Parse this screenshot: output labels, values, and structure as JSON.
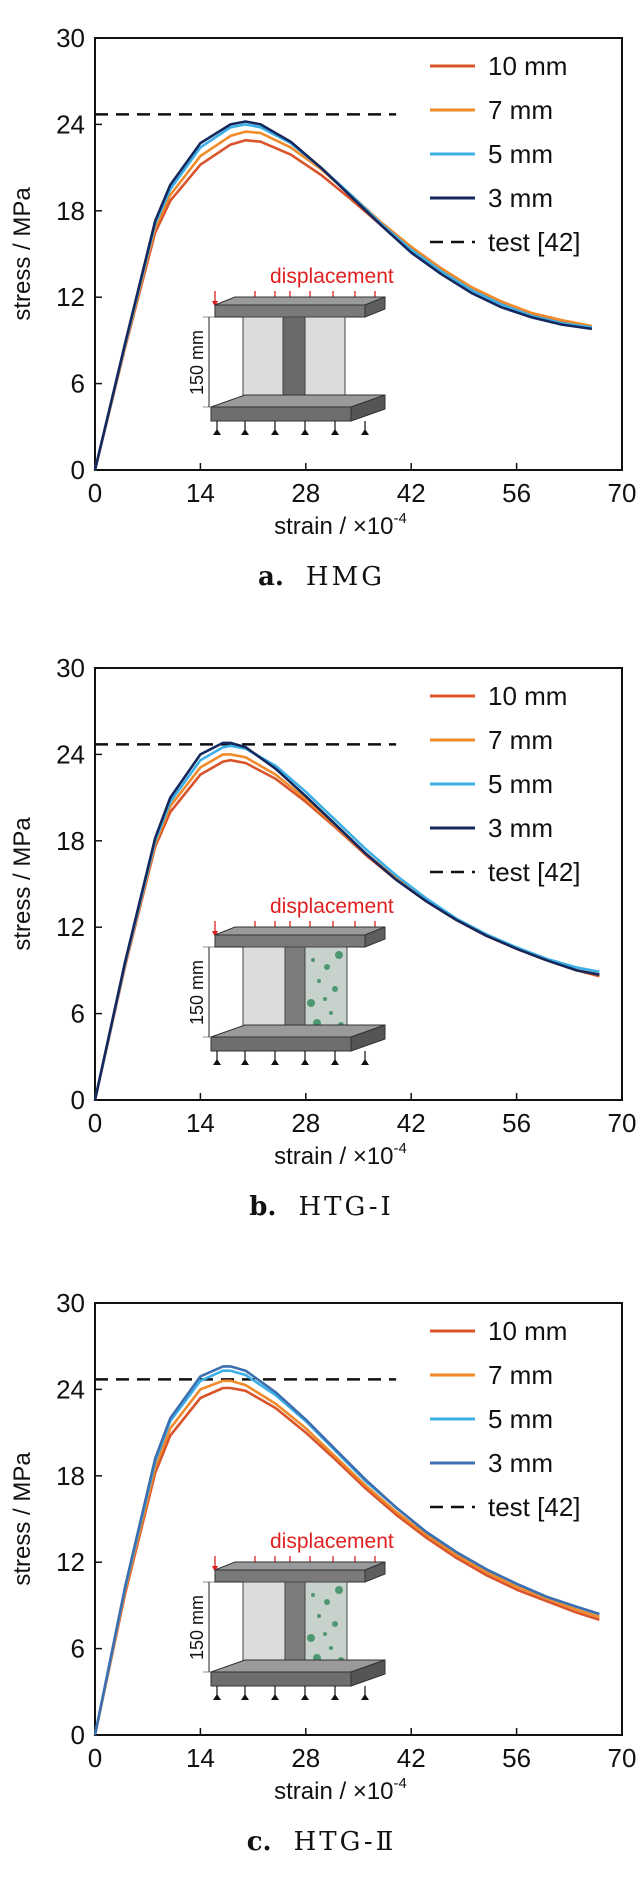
{
  "chart_data": [
    {
      "type": "line",
      "caption_label": "a.",
      "caption_name": "HMG",
      "xlabel": "strain / ×10",
      "xlabel_exp": "-4",
      "ylabel": "stress / MPa",
      "xlim": [
        0,
        70
      ],
      "ylim": [
        0,
        30
      ],
      "xticks": [
        "0",
        "14",
        "28",
        "42",
        "56",
        "70"
      ],
      "yticks": [
        "0",
        "6",
        "12",
        "18",
        "24",
        "30"
      ],
      "legend_placement": "top-right",
      "test_value": 24.7,
      "test_x_range": [
        0,
        40
      ],
      "series": [
        {
          "name": "10 mm",
          "color": "#d9542b",
          "x": [
            0,
            4,
            8,
            10,
            14,
            18,
            20,
            22,
            26,
            30,
            34,
            38,
            42,
            46,
            50,
            54,
            58,
            62,
            66
          ],
          "y": [
            0,
            8.5,
            16.5,
            18.7,
            21.2,
            22.6,
            22.9,
            22.8,
            21.9,
            20.5,
            18.8,
            17.0,
            15.3,
            13.9,
            12.6,
            11.6,
            10.8,
            10.3,
            9.9
          ]
        },
        {
          "name": "7 mm",
          "color": "#f08a2a",
          "x": [
            0,
            4,
            8,
            10,
            14,
            18,
            20,
            22,
            26,
            30,
            34,
            38,
            42,
            46,
            50,
            54,
            58,
            62,
            66
          ],
          "y": [
            0,
            8.6,
            16.8,
            19.1,
            21.8,
            23.2,
            23.5,
            23.4,
            22.4,
            20.9,
            19.1,
            17.2,
            15.5,
            14.0,
            12.7,
            11.7,
            10.9,
            10.4,
            10.0
          ]
        },
        {
          "name": "5 mm",
          "color": "#3cb0e6",
          "x": [
            0,
            4,
            8,
            10,
            14,
            18,
            20,
            22,
            26,
            30,
            34,
            38,
            42,
            46,
            50,
            54,
            58,
            62,
            66
          ],
          "y": [
            0,
            8.7,
            17.1,
            19.5,
            22.4,
            23.8,
            24.0,
            23.8,
            22.7,
            21.0,
            19.1,
            17.1,
            15.3,
            13.8,
            12.5,
            11.5,
            10.7,
            10.2,
            9.9
          ]
        },
        {
          "name": "3 mm",
          "color": "#14285e",
          "x": [
            0,
            4,
            8,
            10,
            14,
            18,
            20,
            22,
            26,
            30,
            34,
            38,
            42,
            46,
            50,
            54,
            58,
            62,
            66
          ],
          "y": [
            0,
            8.8,
            17.3,
            19.8,
            22.7,
            24.0,
            24.2,
            24.0,
            22.8,
            21.0,
            19.0,
            17.0,
            15.1,
            13.6,
            12.3,
            11.3,
            10.6,
            10.1,
            9.8
          ]
        }
      ],
      "test_label": "test [42]",
      "inset_label": "displacement",
      "inset_dim": "150 mm",
      "inset_type": "homogeneous"
    },
    {
      "type": "line",
      "caption_label": "b.",
      "caption_name": "HTG-Ⅰ",
      "xlabel": "strain / ×10",
      "xlabel_exp": "-4",
      "ylabel": "stress / MPa",
      "xlim": [
        0,
        70
      ],
      "ylim": [
        0,
        30
      ],
      "xticks": [
        "0",
        "14",
        "28",
        "42",
        "56",
        "70"
      ],
      "yticks": [
        "0",
        "6",
        "12",
        "18",
        "24",
        "30"
      ],
      "legend_placement": "top-right",
      "test_value": 24.7,
      "test_x_range": [
        0,
        40
      ],
      "series": [
        {
          "name": "10 mm",
          "color": "#d9542b",
          "x": [
            0,
            4,
            8,
            10,
            14,
            17,
            18,
            20,
            24,
            28,
            32,
            36,
            40,
            44,
            48,
            52,
            56,
            60,
            64,
            67
          ],
          "y": [
            0,
            9.3,
            17.6,
            20.0,
            22.6,
            23.5,
            23.6,
            23.4,
            22.3,
            20.7,
            18.9,
            17.0,
            15.3,
            13.8,
            12.5,
            11.4,
            10.5,
            9.7,
            9.0,
            8.6
          ]
        },
        {
          "name": "7 mm",
          "color": "#f08a2a",
          "x": [
            0,
            4,
            8,
            10,
            14,
            17,
            18,
            20,
            24,
            28,
            32,
            36,
            40,
            44,
            48,
            52,
            56,
            60,
            64,
            67
          ],
          "y": [
            0,
            9.4,
            17.8,
            20.4,
            23.1,
            24.0,
            24.0,
            23.8,
            22.6,
            20.9,
            19.0,
            17.1,
            15.4,
            13.8,
            12.5,
            11.4,
            10.5,
            9.7,
            9.0,
            8.7
          ]
        },
        {
          "name": "5 mm",
          "color": "#3cb0e6",
          "x": [
            0,
            4,
            8,
            10,
            14,
            17,
            18,
            20,
            24,
            28,
            32,
            36,
            40,
            44,
            48,
            52,
            56,
            60,
            64,
            67
          ],
          "y": [
            0,
            9.5,
            18.0,
            20.7,
            23.6,
            24.5,
            24.6,
            24.4,
            23.2,
            21.4,
            19.4,
            17.4,
            15.6,
            14.0,
            12.6,
            11.5,
            10.6,
            9.8,
            9.2,
            8.9
          ]
        },
        {
          "name": "3 mm",
          "color": "#14285e",
          "x": [
            0,
            4,
            8,
            10,
            14,
            17,
            18,
            20,
            24,
            28,
            32,
            36,
            40,
            44,
            48,
            52,
            56,
            60,
            64,
            67
          ],
          "y": [
            0,
            9.6,
            18.2,
            21.0,
            24.0,
            24.8,
            24.8,
            24.5,
            23.0,
            21.1,
            19.1,
            17.1,
            15.3,
            13.8,
            12.5,
            11.4,
            10.5,
            9.7,
            9.0,
            8.7
          ]
        }
      ],
      "test_label": "test [42]",
      "inset_label": "displacement",
      "inset_dim": "150 mm",
      "inset_type": "hybrid"
    },
    {
      "type": "line",
      "caption_label": "c.",
      "caption_name": "HTG-Ⅱ",
      "xlabel": "strain / ×10",
      "xlabel_exp": "-4",
      "ylabel": "stress / MPa",
      "xlim": [
        0,
        70
      ],
      "ylim": [
        0,
        30
      ],
      "xticks": [
        "0",
        "14",
        "28",
        "42",
        "56",
        "70"
      ],
      "yticks": [
        "0",
        "6",
        "12",
        "18",
        "24",
        "30"
      ],
      "legend_placement": "top-right",
      "test_value": 24.7,
      "test_x_range": [
        0,
        40
      ],
      "series": [
        {
          "name": "10 mm",
          "color": "#d9542b",
          "x": [
            0,
            4,
            8,
            10,
            14,
            17,
            18,
            20,
            24,
            28,
            32,
            36,
            40,
            44,
            48,
            52,
            56,
            60,
            64,
            67
          ],
          "y": [
            0,
            9.8,
            18.2,
            20.8,
            23.4,
            24.1,
            24.1,
            23.9,
            22.7,
            21.0,
            19.1,
            17.1,
            15.3,
            13.7,
            12.3,
            11.1,
            10.1,
            9.3,
            8.5,
            8.0
          ]
        },
        {
          "name": "7 mm",
          "color": "#f08a2a",
          "x": [
            0,
            4,
            8,
            10,
            14,
            17,
            18,
            20,
            24,
            28,
            32,
            36,
            40,
            44,
            48,
            52,
            56,
            60,
            64,
            67
          ],
          "y": [
            0,
            10.0,
            18.6,
            21.3,
            24.0,
            24.6,
            24.6,
            24.3,
            23.0,
            21.3,
            19.3,
            17.3,
            15.5,
            13.9,
            12.5,
            11.3,
            10.3,
            9.5,
            8.7,
            8.2
          ]
        },
        {
          "name": "5 mm",
          "color": "#3cb0e6",
          "x": [
            0,
            4,
            8,
            10,
            14,
            17,
            18,
            20,
            24,
            28,
            32,
            36,
            40,
            44,
            48,
            52,
            56,
            60,
            64,
            67
          ],
          "y": [
            0,
            10.2,
            19.0,
            21.8,
            24.6,
            25.3,
            25.3,
            25.0,
            23.6,
            21.8,
            19.7,
            17.6,
            15.8,
            14.1,
            12.7,
            11.5,
            10.5,
            9.6,
            8.9,
            8.4
          ]
        },
        {
          "name": "3 mm",
          "color": "#3d6fb0",
          "x": [
            0,
            4,
            8,
            10,
            14,
            17,
            18,
            20,
            24,
            28,
            32,
            36,
            40,
            44,
            48,
            52,
            56,
            60,
            64,
            67
          ],
          "y": [
            0,
            10.3,
            19.2,
            22.0,
            24.9,
            25.6,
            25.6,
            25.3,
            23.8,
            21.9,
            19.8,
            17.7,
            15.8,
            14.1,
            12.7,
            11.5,
            10.5,
            9.6,
            8.9,
            8.4
          ]
        }
      ],
      "test_label": "test [42]",
      "inset_label": "displacement",
      "inset_dim": "150 mm",
      "inset_type": "hybrid"
    }
  ]
}
